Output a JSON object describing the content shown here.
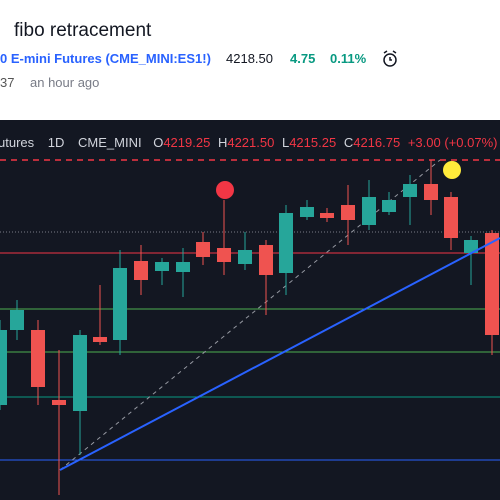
{
  "header": {
    "title": "fibo retracement",
    "symbol": "0 E-mini Futures (CME_MINI:ES1!)",
    "price": "4218.50",
    "change": "4.75",
    "change_percent": "0.11%",
    "user": "37",
    "time": "an hour ago"
  },
  "legend": {
    "name": "utures",
    "interval": "1D",
    "exchange": "CME_MINI",
    "open_label": "O",
    "open": "4219.25",
    "high_label": "H",
    "high": "4221.50",
    "low_label": "L",
    "low": "4215.25",
    "close_label": "C",
    "close": "4216.75",
    "change": "+3.00 (+0.07%)"
  }
}
